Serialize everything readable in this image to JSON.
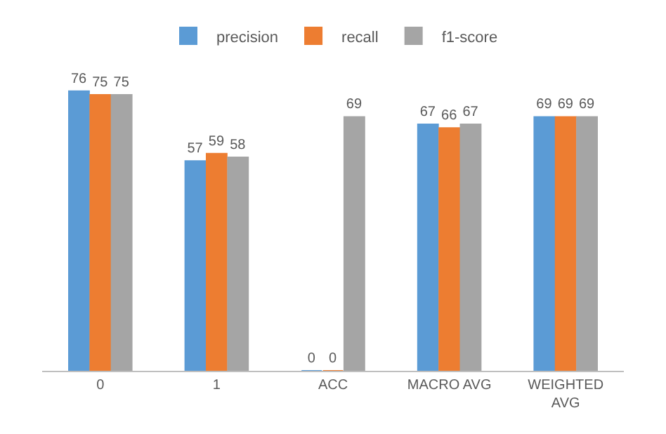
{
  "chart_data": {
    "type": "bar",
    "categories": [
      "0",
      "1",
      "ACC",
      "MACRO AVG",
      "WEIGHTED AVG"
    ],
    "series": [
      {
        "name": "precision",
        "color": "#5b9bd5",
        "values": [
          76,
          57,
          0,
          67,
          69
        ]
      },
      {
        "name": "recall",
        "color": "#ed7d31",
        "values": [
          75,
          59,
          0,
          66,
          69
        ]
      },
      {
        "name": "f1-score",
        "color": "#a5a5a5",
        "values": [
          75,
          58,
          69,
          67,
          69
        ]
      }
    ],
    "data_labels": true,
    "legend": "top",
    "tick_labels": "x"
  }
}
